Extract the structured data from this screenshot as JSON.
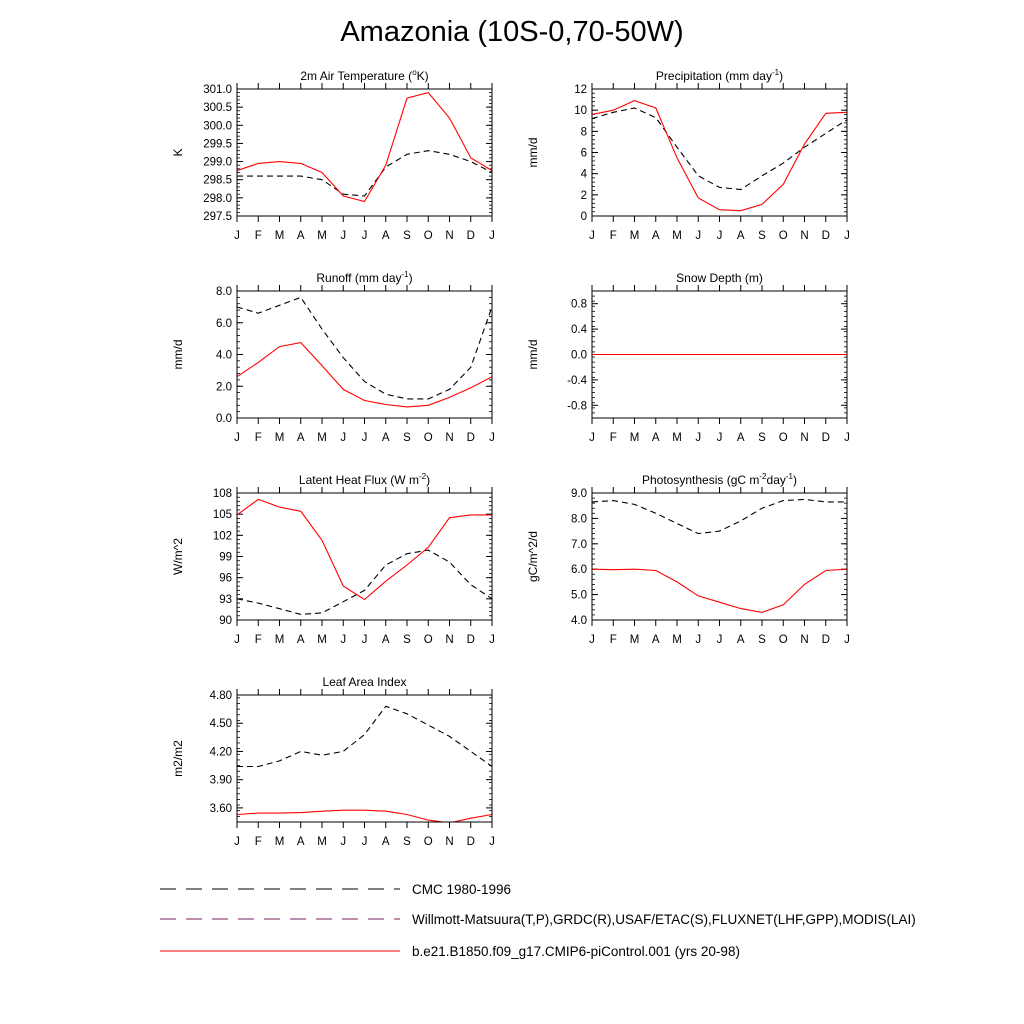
{
  "title": "Amazonia (10S-0,70-50W)",
  "months": [
    "J",
    "F",
    "M",
    "A",
    "M",
    "J",
    "J",
    "A",
    "S",
    "O",
    "N",
    "D",
    "J"
  ],
  "legend": [
    {
      "label": "CMC 1980-1996",
      "style": "dash-black"
    },
    {
      "label": "Willmott-Matsuura(T,P),GRDC(R),USAF/ETAC(S),FLUXNET(LHF,GPP),MODIS(LAI)",
      "style": "dash-multi"
    },
    {
      "label": "b.e21.B1850.f09_g17.CMIP6-piControl.001 (yrs 20-98)",
      "style": "solid-red"
    }
  ],
  "colors": {
    "model": "#ff0000",
    "obs": "#000000",
    "axis": "#000000"
  },
  "chart_data": [
    {
      "type": "line",
      "title": "2m Air Temperature (°K)",
      "title_main": "2m Air Temperature (",
      "title_sup": "o",
      "title_rest": "K)",
      "ylabel": "K",
      "ylim": [
        297.5,
        301.0
      ],
      "yticks": [
        "297.5",
        "298.0",
        "298.5",
        "299.0",
        "299.5",
        "300.0",
        "300.5",
        "301.0"
      ],
      "series": [
        {
          "name": "obs",
          "values": [
            298.6,
            298.6,
            298.6,
            298.6,
            298.5,
            298.1,
            298.05,
            298.85,
            299.2,
            299.3,
            299.2,
            299.0,
            298.7
          ]
        },
        {
          "name": "model",
          "values": [
            298.75,
            298.95,
            299.0,
            298.95,
            298.7,
            298.05,
            297.9,
            298.9,
            300.75,
            300.9,
            300.2,
            299.1,
            298.75
          ]
        }
      ]
    },
    {
      "type": "line",
      "title": "Precipitation (mm day-1)",
      "title_main": "Precipitation (mm day",
      "title_sup": "-1",
      "title_rest": ")",
      "ylabel": "mm/d",
      "ylim": [
        0,
        12
      ],
      "yticks": [
        "0",
        "2",
        "4",
        "6",
        "8",
        "10",
        "12"
      ],
      "series": [
        {
          "name": "obs",
          "values": [
            9.2,
            9.8,
            10.2,
            9.3,
            6.5,
            3.8,
            2.7,
            2.5,
            3.8,
            5.0,
            6.5,
            7.8,
            9.1
          ]
        },
        {
          "name": "model",
          "values": [
            9.6,
            10.0,
            10.9,
            10.2,
            5.5,
            1.7,
            0.6,
            0.5,
            1.1,
            3.0,
            6.8,
            9.7,
            9.8
          ]
        }
      ]
    },
    {
      "type": "line",
      "title": "Runoff (mm day-1)",
      "title_main": "Runoff (mm day",
      "title_sup": "-1",
      "title_rest": ")",
      "ylabel": "mm/d",
      "ylim": [
        0,
        8
      ],
      "yticks": [
        "0.0",
        "2.0",
        "4.0",
        "6.0",
        "8.0"
      ],
      "series": [
        {
          "name": "obs",
          "values": [
            7.0,
            6.6,
            7.1,
            7.6,
            5.6,
            3.8,
            2.3,
            1.5,
            1.2,
            1.2,
            1.8,
            3.2,
            7.0
          ]
        },
        {
          "name": "model",
          "values": [
            2.6,
            3.5,
            4.5,
            4.75,
            3.3,
            1.8,
            1.1,
            0.85,
            0.7,
            0.8,
            1.3,
            1.9,
            2.6
          ]
        }
      ]
    },
    {
      "type": "line",
      "title": "Snow Depth (m)",
      "title_main": "Snow Depth (m)",
      "title_sup": "",
      "title_rest": "",
      "ylabel": "mm/d",
      "ylim": [
        -1.0,
        1.0
      ],
      "yticks": [
        "-0.8",
        "-0.4",
        "0.0",
        "0.4",
        "0.8"
      ],
      "ytick_values": [
        -0.8,
        -0.4,
        0.0,
        0.4,
        0.8
      ],
      "series": [
        {
          "name": "obs",
          "values": [
            0,
            0,
            0,
            0,
            0,
            0,
            0,
            0,
            0,
            0,
            0,
            0,
            0
          ]
        },
        {
          "name": "model",
          "values": [
            0,
            0,
            0,
            0,
            0,
            0,
            0,
            0,
            0,
            0,
            0,
            0,
            0
          ]
        }
      ]
    },
    {
      "type": "line",
      "title": "Latent Heat Flux (W m-2)",
      "title_main": "Latent Heat Flux (W m",
      "title_sup": "-2",
      "title_rest": ")",
      "ylabel": "W/m^2",
      "ylim": [
        90,
        108
      ],
      "yticks": [
        "90",
        "93",
        "96",
        "99",
        "102",
        "105",
        "108"
      ],
      "series": [
        {
          "name": "obs",
          "values": [
            93.0,
            92.4,
            91.6,
            90.8,
            91.0,
            92.6,
            94.2,
            97.8,
            99.4,
            99.9,
            98.2,
            95.0,
            93.0
          ]
        },
        {
          "name": "model",
          "values": [
            104.9,
            107.1,
            106.0,
            105.4,
            101.3,
            94.8,
            92.9,
            95.5,
            97.8,
            100.3,
            104.5,
            104.9,
            104.9
          ]
        }
      ]
    },
    {
      "type": "line",
      "title": "Photosynthesis (gC m-2day-1)",
      "title_main": "Photosynthesis (gC m",
      "title_sup": "-2",
      "title_rest": "day",
      "title_sup2": "-1",
      "title_rest2": ")",
      "ylabel": "gC/m^2/d",
      "ylim": [
        4.0,
        9.0
      ],
      "yticks": [
        "4.0",
        "5.0",
        "6.0",
        "7.0",
        "8.0",
        "9.0"
      ],
      "series": [
        {
          "name": "obs",
          "values": [
            8.65,
            8.7,
            8.55,
            8.2,
            7.8,
            7.4,
            7.5,
            7.9,
            8.4,
            8.7,
            8.75,
            8.65,
            8.65
          ]
        },
        {
          "name": "model",
          "values": [
            6.0,
            5.98,
            6.0,
            5.95,
            5.5,
            4.95,
            4.7,
            4.45,
            4.3,
            4.6,
            5.4,
            5.95,
            6.0
          ]
        }
      ]
    },
    {
      "type": "line",
      "title": "Leaf Area Index",
      "title_main": "Leaf Area Index",
      "title_sup": "",
      "title_rest": "",
      "ylabel": "m2/m2",
      "ylim": [
        3.45,
        4.8
      ],
      "yticks": [
        "3.60",
        "3.90",
        "4.20",
        "4.50",
        "4.80"
      ],
      "ytick_values": [
        3.6,
        3.9,
        4.2,
        4.5,
        4.8
      ],
      "series": [
        {
          "name": "obs",
          "values": [
            4.04,
            4.04,
            4.1,
            4.2,
            4.16,
            4.2,
            4.38,
            4.68,
            4.6,
            4.48,
            4.36,
            4.2,
            4.04
          ]
        },
        {
          "name": "model",
          "values": [
            3.53,
            3.545,
            3.545,
            3.55,
            3.565,
            3.575,
            3.575,
            3.565,
            3.53,
            3.47,
            3.44,
            3.49,
            3.53
          ]
        }
      ]
    }
  ]
}
